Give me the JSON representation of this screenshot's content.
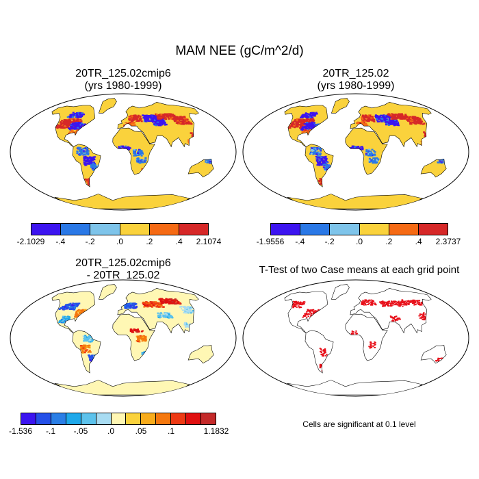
{
  "title": "MAM NEE (gC/m^2/d)",
  "colors": {
    "ocean": "#ffffff",
    "outline": "#000000",
    "signif": "#e8101a"
  },
  "chart_data": [
    {
      "type": "heatmap",
      "panel": "top-left",
      "title_line1": "20TR_125.02cmip6",
      "title_line2": "(yrs 1980-1999)",
      "colorbar": {
        "colors": [
          "#3c14f0",
          "#2a78e6",
          "#7ec4ea",
          "#fad23c",
          "#f56a14",
          "#d62828"
        ],
        "labels": [
          "-2.1029",
          "-.4",
          "-.2",
          ".0",
          ".2",
          ".4",
          "2.1074"
        ]
      }
    },
    {
      "type": "heatmap",
      "panel": "top-right",
      "title_line1": "20TR_125.02",
      "title_line2": "(yrs 1980-1999)",
      "colorbar": {
        "colors": [
          "#3c14f0",
          "#2a78e6",
          "#7ec4ea",
          "#fad23c",
          "#f56a14",
          "#d62828"
        ],
        "labels": [
          "-1.9556",
          "-.4",
          "-.2",
          ".0",
          ".2",
          ".4",
          "2.3737"
        ]
      }
    },
    {
      "type": "heatmap",
      "panel": "bottom-left",
      "title_line1": "20TR_125.02cmip6",
      "title_line2": "- 20TR_125.02",
      "colorbar": {
        "colors": [
          "#3b14f0",
          "#2450e8",
          "#2a7ee6",
          "#1ea8ea",
          "#5cc2ec",
          "#a8dcf2",
          "#fff7b4",
          "#fad23c",
          "#f8ac1c",
          "#f5780e",
          "#ee3a14",
          "#e01010",
          "#c42a2a"
        ],
        "labels": [
          "-1.536",
          "-.1",
          "-.05",
          ".0",
          ".05",
          ".1",
          "1.1832"
        ],
        "label_positions": [
          0,
          2,
          4,
          6,
          8,
          10,
          13
        ]
      }
    },
    {
      "type": "heatmap",
      "panel": "bottom-right",
      "title_line1": "T-Test of two Case means at each grid point",
      "note": "Cells are significant at 0.1 level"
    }
  ]
}
